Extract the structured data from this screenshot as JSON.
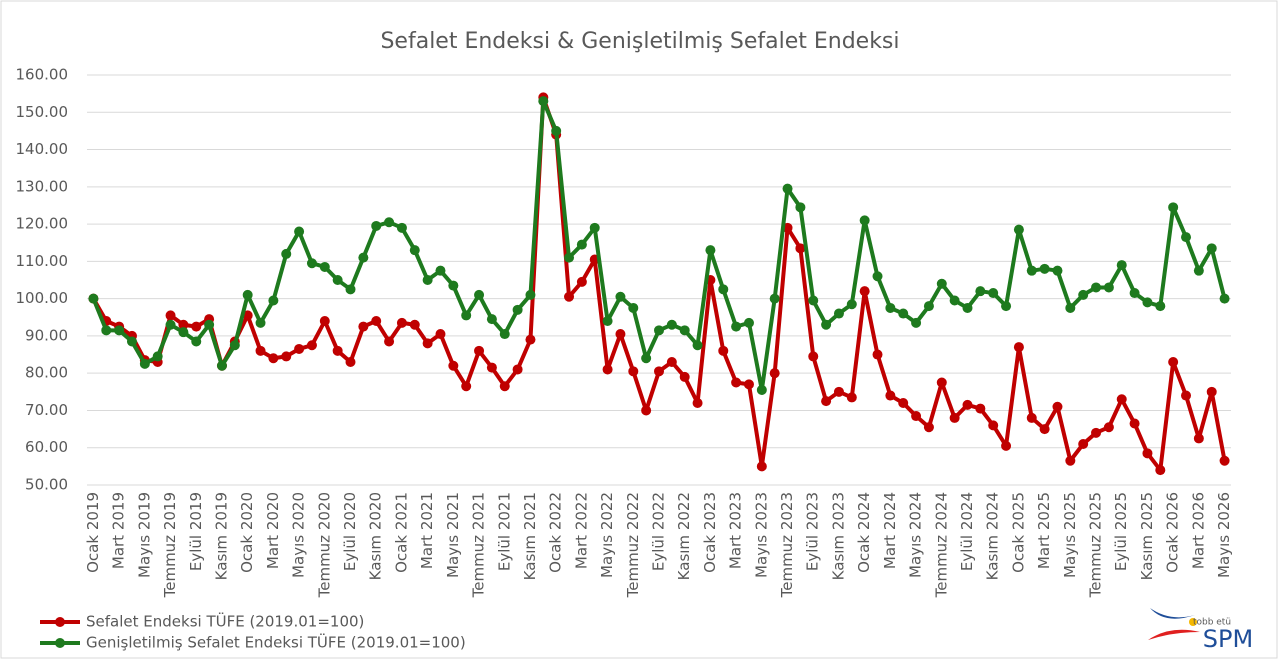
{
  "chart_data": {
    "type": "line",
    "title": "Sefalet Endeksi & Genişletilmiş Sefalet Endeksi",
    "categories": [
      "Ocak 2019",
      null,
      "Mart 2019",
      null,
      "Mayıs 2019",
      null,
      "Temmuz 2019",
      null,
      "Eylül 2019",
      null,
      "Kasım 2019",
      null,
      "Ocak 2020",
      null,
      "Mart 2020",
      null,
      "Mayıs 2020",
      null,
      "Temmuz 2020",
      null,
      "Eylül 2020",
      null,
      "Kasım 2020",
      null,
      "Ocak 2021",
      null,
      "Mart 2021",
      null,
      "Mayıs 2021",
      null,
      "Temmuz 2021",
      null,
      "Eylül 2021",
      null,
      "Kasım 2021",
      null,
      "Ocak 2022",
      null,
      "Mart 2022",
      null,
      "Mayıs 2022",
      null,
      "Temmuz 2022",
      null,
      "Eylül 2022",
      null,
      "Kasım 2022",
      null,
      "Ocak 2023",
      null,
      "Mart 2023",
      null,
      "Mayıs 2023",
      null,
      "Temmuz 2023",
      null,
      "Eylül 2023",
      null,
      "Kasım 2023",
      null,
      "Ocak 2024",
      null,
      "Mart 2024",
      null,
      "Mayıs 2024",
      null,
      "Temmuz 2024",
      null,
      "Eylül 2024",
      null,
      "Kasım 2024",
      null,
      "Ocak 2025",
      null,
      "Mart 2025",
      null,
      "Mayıs 2025",
      null,
      "Temmuz 2025",
      null,
      "Eylül 2025",
      null,
      "Kasım 2025",
      null,
      "Ocak 2026",
      null,
      "Mart 2026",
      null,
      "Mayıs 2026"
    ],
    "series": [
      {
        "name": "Sefalet Endeksi TÜFE (2019.01=100)",
        "color": "#c00000",
        "values": [
          100,
          94,
          92.5,
          90,
          83.5,
          83,
          95.5,
          93,
          92.5,
          94.5,
          82,
          88.5,
          95.5,
          86,
          84,
          84.5,
          86.5,
          87.5,
          94,
          86,
          83,
          92.5,
          94,
          88.5,
          93.5,
          93,
          88,
          90.5,
          82,
          76.5,
          86,
          81.5,
          76.5,
          81,
          89,
          154,
          144,
          100.5,
          104.5,
          110.5,
          81,
          90.5,
          80.5,
          70,
          80.5,
          83,
          79,
          72,
          105,
          86,
          77.5,
          77,
          55,
          80,
          119,
          113.5,
          84.5,
          72.5,
          75,
          73.5,
          102,
          85,
          74,
          72,
          68.5,
          65.5,
          77.5,
          68,
          71.5,
          70.5,
          66,
          60.5,
          87,
          68,
          65,
          71,
          56.5,
          61,
          64,
          65.5,
          73,
          66.5,
          58.5,
          54,
          83,
          74,
          62.5,
          75,
          56.5
        ]
      },
      {
        "name": "Genişletilmiş Sefalet Endeksi TÜFE (2019.01=100)",
        "color": "#1e7a1e",
        "values": [
          100,
          91.5,
          91.5,
          88.5,
          82.5,
          84.5,
          93,
          91,
          88.5,
          93,
          82,
          87.5,
          101,
          93.5,
          99.5,
          112,
          118,
          109.5,
          108.5,
          105,
          102.5,
          111,
          119.5,
          120.5,
          119,
          113,
          105,
          107.5,
          103.5,
          95.5,
          101,
          94.5,
          90.5,
          97,
          101,
          153,
          145,
          111,
          114.5,
          119,
          94,
          100.5,
          97.5,
          84,
          91.5,
          93,
          91.5,
          87.5,
          113,
          102.5,
          92.5,
          93.5,
          75.5,
          100,
          129.5,
          124.5,
          99.5,
          93,
          96,
          98.5,
          121,
          106,
          97.5,
          96,
          93.5,
          98,
          104,
          99.5,
          97.5,
          102,
          101.5,
          98,
          118.5,
          107.5,
          108,
          107.5,
          97.5,
          101,
          103,
          103,
          109,
          101.5,
          99,
          98,
          124.5,
          116.5,
          107.5,
          113.5,
          100
        ]
      }
    ],
    "ylim": [
      50,
      160
    ],
    "yticks": [
      {
        "value": 50,
        "label": "50.00"
      },
      {
        "value": 60,
        "label": "60.00"
      },
      {
        "value": 70,
        "label": "70.00"
      },
      {
        "value": 80,
        "label": "80.00"
      },
      {
        "value": 90,
        "label": "90.00"
      },
      {
        "value": 100,
        "label": "100.00"
      },
      {
        "value": 110,
        "label": "110.00"
      },
      {
        "value": 120,
        "label": "120.00"
      },
      {
        "value": 130,
        "label": "130.00"
      },
      {
        "value": 140,
        "label": "140.00"
      },
      {
        "value": 150,
        "label": "150.00"
      },
      {
        "value": 160,
        "label": "160.00"
      }
    ],
    "grid": true,
    "legend": "bottom-left"
  },
  "logo": {
    "small": "tobb etü",
    "text": "SPM"
  }
}
